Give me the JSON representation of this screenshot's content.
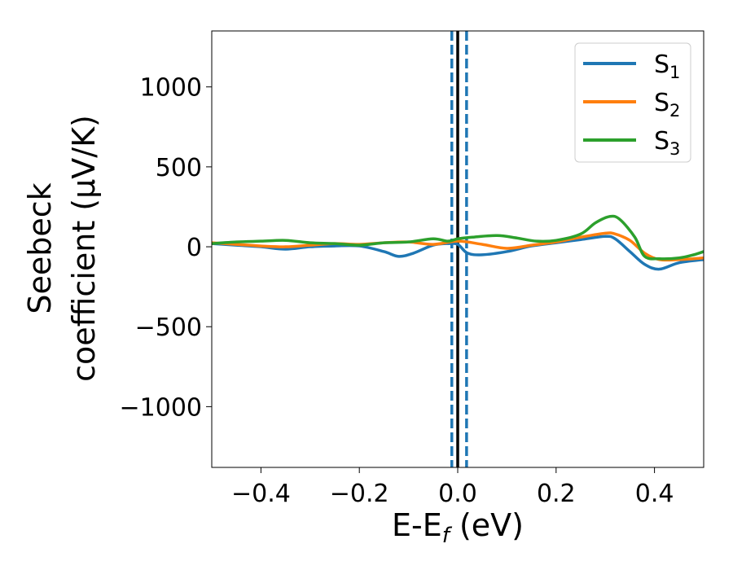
{
  "chart_data": {
    "type": "line",
    "title": "",
    "xlabel": "E-E",
    "xlabel_sub": "f",
    "xlabel_unit": " (eV)",
    "ylabel_line1": "Seebeck",
    "ylabel_line2": "coefficient  (μV/K)",
    "xlim": [
      -0.5,
      0.5
    ],
    "ylim": [
      -1380,
      1350
    ],
    "xticks": [
      -0.4,
      -0.2,
      0.0,
      0.2,
      0.4
    ],
    "xtick_labels": [
      "−0.4",
      "−0.2",
      "0.0",
      "0.2",
      "0.4"
    ],
    "yticks": [
      -1000,
      -500,
      0,
      500,
      1000
    ],
    "ytick_labels": [
      "−1000",
      "−500",
      "0",
      "500",
      "1000"
    ],
    "grid": false,
    "legend_position": "top-right",
    "vlines": [
      {
        "x": 0.0,
        "color": "#000000",
        "style": "solid"
      },
      {
        "x": -0.012,
        "color": "#1f77b4",
        "style": "dashed"
      },
      {
        "x": 0.018,
        "color": "#1f77b4",
        "style": "dashed"
      }
    ],
    "series": [
      {
        "name": "S",
        "sub": "1",
        "color": "#1f77b4",
        "x": [
          -0.5,
          -0.45,
          -0.4,
          -0.35,
          -0.3,
          -0.25,
          -0.2,
          -0.15,
          -0.12,
          -0.09,
          -0.05,
          -0.02,
          0.0,
          0.02,
          0.05,
          0.1,
          0.15,
          0.2,
          0.25,
          0.3,
          0.32,
          0.35,
          0.38,
          0.41,
          0.45,
          0.5
        ],
        "values": [
          20,
          10,
          0,
          -15,
          0,
          5,
          5,
          -30,
          -60,
          -40,
          10,
          20,
          15,
          -40,
          -50,
          -30,
          5,
          25,
          45,
          65,
          50,
          -30,
          -110,
          -140,
          -100,
          -80
        ]
      },
      {
        "name": "S",
        "sub": "2",
        "color": "#ff7f0e",
        "x": [
          -0.5,
          -0.45,
          -0.4,
          -0.35,
          -0.3,
          -0.25,
          -0.2,
          -0.15,
          -0.1,
          -0.05,
          0.0,
          0.05,
          0.1,
          0.15,
          0.2,
          0.25,
          0.3,
          0.32,
          0.35,
          0.38,
          0.41,
          0.45,
          0.5
        ],
        "values": [
          25,
          15,
          5,
          0,
          10,
          20,
          15,
          25,
          30,
          15,
          35,
          15,
          -10,
          10,
          30,
          60,
          85,
          80,
          40,
          -40,
          -80,
          -80,
          -70
        ]
      },
      {
        "name": "S",
        "sub": "3",
        "color": "#2ca02c",
        "x": [
          -0.5,
          -0.45,
          -0.4,
          -0.35,
          -0.3,
          -0.25,
          -0.2,
          -0.15,
          -0.1,
          -0.05,
          -0.02,
          0.0,
          0.03,
          0.08,
          0.12,
          0.16,
          0.2,
          0.25,
          0.28,
          0.31,
          0.33,
          0.36,
          0.38,
          0.41,
          0.45,
          0.48,
          0.5
        ],
        "values": [
          20,
          30,
          35,
          40,
          25,
          20,
          10,
          25,
          30,
          50,
          35,
          50,
          60,
          70,
          55,
          35,
          40,
          80,
          150,
          190,
          170,
          60,
          -60,
          -75,
          -70,
          -50,
          -30
        ]
      }
    ]
  }
}
